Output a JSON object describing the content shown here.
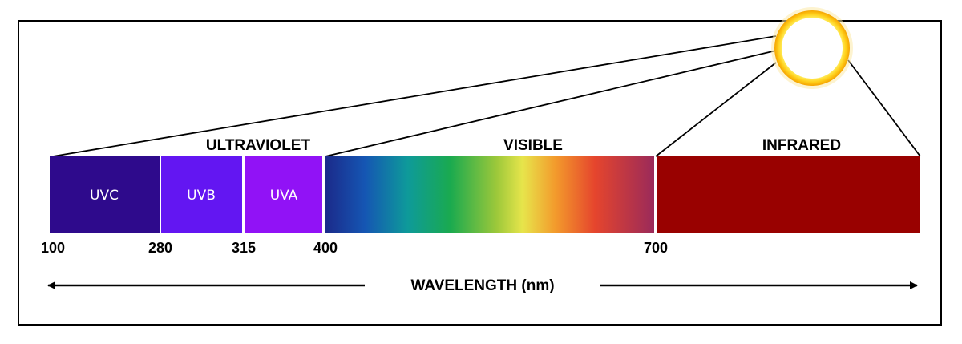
{
  "colors": {
    "uvc": "#2e0a8c",
    "uvb": "#6316f2",
    "uva": "#9112f6",
    "infrared": "#990100",
    "sun_core": "#ffffff",
    "sun_ring": "#ffd21a",
    "sun_glow": "#f5a300",
    "outline": "#000000"
  },
  "regions": {
    "ultraviolet": "ULTRAVIOLET",
    "visible": "VISIBLE",
    "infrared": "INFRARED"
  },
  "bands": [
    {
      "id": "uvc",
      "label": "UVC",
      "from_nm": 100,
      "to_nm": 280
    },
    {
      "id": "uvb",
      "label": "UVB",
      "from_nm": 280,
      "to_nm": 315
    },
    {
      "id": "uva",
      "label": "UVA",
      "from_nm": 315,
      "to_nm": 400
    }
  ],
  "ticks": [
    "100",
    "280",
    "315",
    "400",
    "700"
  ],
  "axis": {
    "label": "WAVELENGTH (nm)"
  },
  "icons": {
    "sun": "sun-icon",
    "arrow_left": "arrow-left-icon",
    "arrow_right": "arrow-right-icon"
  }
}
